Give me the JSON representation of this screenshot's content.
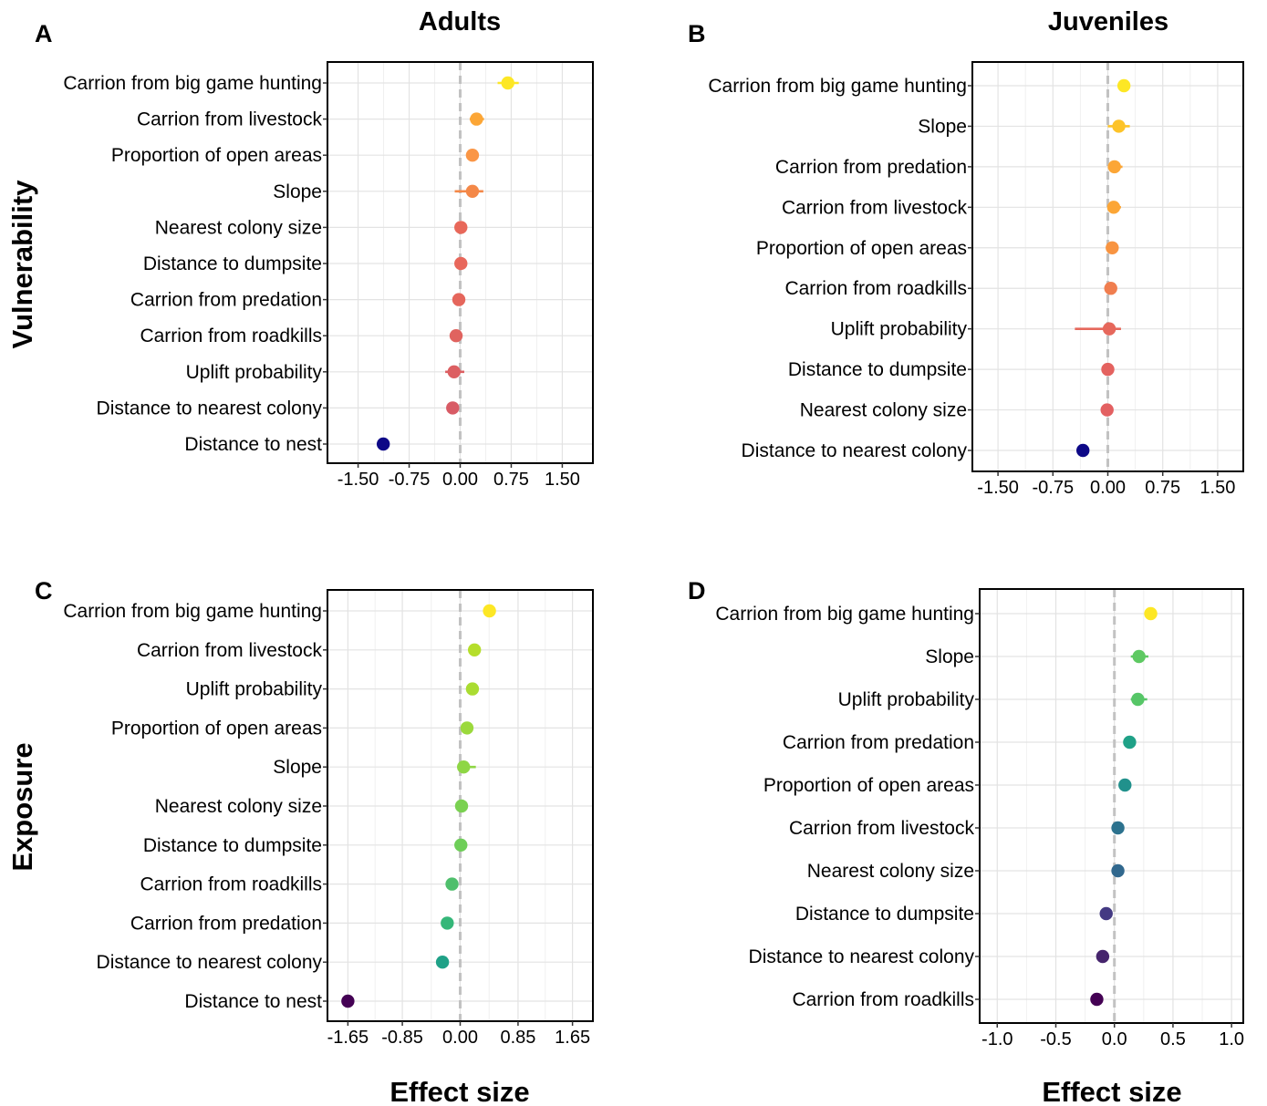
{
  "figure": {
    "column_titles": [
      "Adults",
      "Juveniles"
    ],
    "row_titles": [
      "Vulnerability",
      "Exposure"
    ],
    "x_axis_title": "Effect size"
  },
  "chart_data": [
    {
      "panel": "A",
      "type": "scatter",
      "subtype": "point-range (coefficient plot)",
      "xlim": [
        -1.95,
        1.95
      ],
      "x_ticks": [
        -1.5,
        -0.75,
        0,
        0.75,
        1.5
      ],
      "x_tick_labels": [
        "-1.50",
        "-0.75",
        "0.00",
        "0.75",
        "1.50"
      ],
      "reference_line": 0,
      "grid": true,
      "categories": [
        "Carrion from big game hunting",
        "Carrion from livestock",
        "Proportion of open areas",
        "Slope",
        "Nearest colony size",
        "Distance to dumpsite",
        "Carrion from predation",
        "Carrion from roadkills",
        "Uplift probability",
        "Distance to nearest colony",
        "Distance to nest"
      ],
      "values": [
        0.7,
        0.24,
        0.18,
        0.18,
        0.01,
        0.01,
        -0.02,
        -0.06,
        -0.09,
        -0.11,
        -1.13
      ],
      "lower": [
        0.55,
        0.14,
        0.12,
        -0.08,
        -0.04,
        -0.04,
        -0.07,
        -0.11,
        -0.22,
        -0.2,
        -1.18
      ],
      "upper": [
        0.86,
        0.35,
        0.24,
        0.34,
        0.06,
        0.06,
        0.03,
        -0.01,
        0.06,
        -0.02,
        -1.08
      ],
      "colors": [
        "#FDE725",
        "#FCA636",
        "#FA9646",
        "#F48848",
        "#E8685A",
        "#E8675B",
        "#E5665C",
        "#E0635F",
        "#DC5F62",
        "#D85B65",
        "#0D0887"
      ]
    },
    {
      "panel": "B",
      "type": "scatter",
      "subtype": "point-range (coefficient plot)",
      "xlim": [
        -1.85,
        1.85
      ],
      "x_ticks": [
        -1.5,
        -0.75,
        0,
        0.75,
        1.5
      ],
      "x_tick_labels": [
        "-1.50",
        "-0.75",
        "0.00",
        "0.75",
        "1.50"
      ],
      "reference_line": 0,
      "grid": true,
      "categories": [
        "Carrion from big game hunting",
        "Slope",
        "Carrion from predation",
        "Carrion from livestock",
        "Proportion of open areas",
        "Carrion from roadkills",
        "Uplift probability",
        "Distance to dumpsite",
        "Nearest colony size",
        "Distance to nearest colony"
      ],
      "values": [
        0.22,
        0.15,
        0.09,
        0.08,
        0.06,
        0.04,
        0.02,
        0.0,
        -0.01,
        -0.34
      ],
      "lower": [
        0.15,
        0.0,
        0.0,
        0.0,
        0.0,
        -0.01,
        -0.45,
        -0.04,
        -0.05,
        -0.42
      ],
      "upper": [
        0.3,
        0.3,
        0.2,
        0.18,
        0.14,
        0.09,
        0.18,
        0.04,
        0.03,
        -0.26
      ],
      "colors": [
        "#FDE725",
        "#FDC328",
        "#FCA636",
        "#FCA636",
        "#F89441",
        "#F07E4F",
        "#E6685C",
        "#E4625F",
        "#E36061",
        "#0D0887"
      ]
    },
    {
      "panel": "C",
      "type": "scatter",
      "subtype": "point-range (coefficient plot)",
      "xlim": [
        -1.95,
        1.95
      ],
      "x_ticks": [
        -1.65,
        -0.85,
        0,
        0.85,
        1.65
      ],
      "x_tick_labels": [
        "-1.65",
        "-0.85",
        "0.00",
        "0.85",
        "1.65"
      ],
      "reference_line": 0,
      "grid": true,
      "categories": [
        "Carrion from big game hunting",
        "Carrion from livestock",
        "Uplift probability",
        "Proportion of open areas",
        "Slope",
        "Nearest colony size",
        "Distance to dumpsite",
        "Carrion from roadkills",
        "Carrion from predation",
        "Distance to nearest colony",
        "Distance to nest"
      ],
      "values": [
        0.43,
        0.21,
        0.18,
        0.1,
        0.05,
        0.02,
        0.01,
        -0.12,
        -0.19,
        -0.26,
        -1.65
      ],
      "lower": [
        0.38,
        0.16,
        0.13,
        0.05,
        -0.02,
        -0.03,
        -0.04,
        -0.17,
        -0.24,
        -0.31,
        -1.7
      ],
      "upper": [
        0.48,
        0.26,
        0.23,
        0.15,
        0.23,
        0.07,
        0.06,
        -0.07,
        -0.14,
        -0.21,
        -1.6
      ],
      "colors": [
        "#FDE725",
        "#B5DE2B",
        "#AADC32",
        "#9BD93C",
        "#8ED645",
        "#7AD151",
        "#6ECE58",
        "#4FBF6C",
        "#35B779",
        "#1FA187",
        "#440154"
      ]
    },
    {
      "panel": "D",
      "type": "scatter",
      "subtype": "point-range (coefficient plot)",
      "xlim": [
        -1.15,
        1.1
      ],
      "x_ticks": [
        -1.0,
        -0.5,
        0,
        0.5,
        1.0
      ],
      "x_tick_labels": [
        "-1.0",
        "-0.5",
        "0.0",
        "0.5",
        "1.0"
      ],
      "reference_line": 0,
      "grid": true,
      "categories": [
        "Carrion from big game hunting",
        "Slope",
        "Uplift probability",
        "Carrion from predation",
        "Proportion of open areas",
        "Carrion from livestock",
        "Nearest colony size",
        "Distance to dumpsite",
        "Distance to nearest colony",
        "Carrion from roadkills"
      ],
      "values": [
        0.31,
        0.21,
        0.2,
        0.13,
        0.09,
        0.03,
        0.03,
        -0.07,
        -0.1,
        -0.15
      ],
      "lower": [
        0.27,
        0.14,
        0.14,
        0.09,
        0.05,
        -0.01,
        -0.01,
        -0.11,
        -0.14,
        -0.19
      ],
      "upper": [
        0.35,
        0.29,
        0.28,
        0.17,
        0.13,
        0.07,
        0.07,
        -0.03,
        -0.06,
        -0.11
      ],
      "colors": [
        "#FDE725",
        "#5EC962",
        "#56C667",
        "#1FA187",
        "#21918C",
        "#2C728E",
        "#31688E",
        "#443A83",
        "#46256D",
        "#440154"
      ]
    }
  ]
}
